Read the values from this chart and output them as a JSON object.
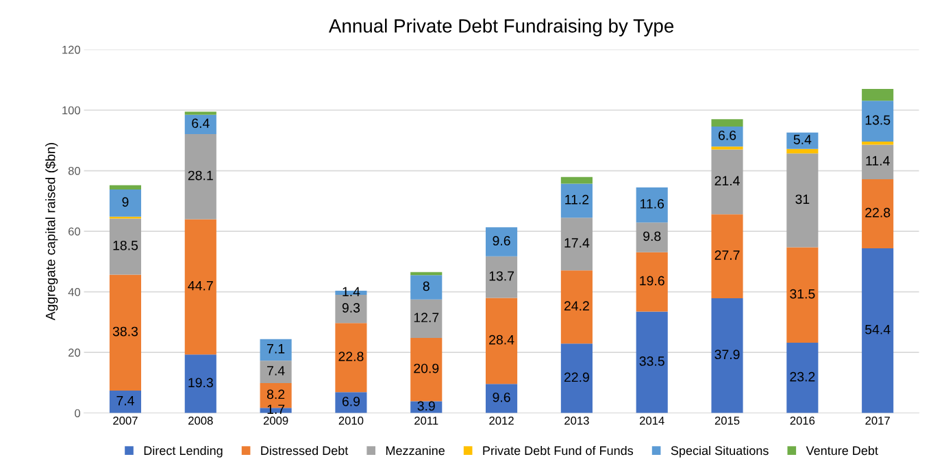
{
  "chart_data": {
    "type": "bar",
    "title": "Annual Private Debt Fundraising by Type",
    "ylabel": "Aggregate capital raised ($bn)",
    "categories": [
      "2007",
      "2008",
      "2009",
      "2010",
      "2011",
      "2012",
      "2013",
      "2014",
      "2015",
      "2016",
      "2017"
    ],
    "stacked": true,
    "ylim": [
      0,
      120
    ],
    "yticks": [
      0,
      20,
      40,
      60,
      80,
      100,
      120
    ],
    "grid": "y",
    "legend": "bottom",
    "series": [
      {
        "name": "Direct Lending",
        "color": "#4472c4",
        "values": [
          7.4,
          19.3,
          1.7,
          6.9,
          3.9,
          9.6,
          22.9,
          33.5,
          37.9,
          23.2,
          54.4
        ],
        "value_labels": [
          "7.4",
          "19.3",
          "1.7",
          "6.9",
          "3.9",
          "9.6",
          "22.9",
          "33.5",
          "37.9",
          "23.2",
          "54.4"
        ]
      },
      {
        "name": "Distressed Debt",
        "color": "#ed7d31",
        "values": [
          38.3,
          44.7,
          8.2,
          22.8,
          20.9,
          28.4,
          24.2,
          19.6,
          27.7,
          31.5,
          22.8
        ],
        "value_labels": [
          "38.3",
          "44.7",
          "8.2",
          "22.8",
          "20.9",
          "28.4",
          "24.2",
          "19.6",
          "27.7",
          "31.5",
          "22.8"
        ]
      },
      {
        "name": "Mezzanine",
        "color": "#a5a5a5",
        "values": [
          18.5,
          28.1,
          7.4,
          9.3,
          12.7,
          13.7,
          17.4,
          9.8,
          21.4,
          31,
          11.4
        ],
        "value_labels": [
          "18.5",
          "28.1",
          "7.4",
          "9.3",
          "12.7",
          "13.7",
          "17.4",
          "9.8",
          "21.4",
          "31",
          "11.4"
        ]
      },
      {
        "name": "Private Debt Fund of Funds",
        "color": "#ffc000",
        "values": [
          0.6,
          0,
          0,
          0,
          0,
          0,
          0,
          0,
          1,
          1.5,
          1
        ],
        "value_labels": [
          null,
          null,
          null,
          null,
          null,
          null,
          null,
          null,
          null,
          null,
          null
        ]
      },
      {
        "name": "Special Situations",
        "color": "#5b9bd5",
        "values": [
          9,
          6.4,
          7.1,
          1.4,
          8,
          9.6,
          11.2,
          11.6,
          6.6,
          5.4,
          13.5
        ],
        "value_labels": [
          "9",
          "6.4",
          "7.1",
          "1.4",
          "8",
          "9.6",
          "11.2",
          "11.6",
          "6.6",
          "5.4",
          "13.5"
        ]
      },
      {
        "name": "Venture Debt",
        "color": "#70ad47",
        "values": [
          1.4,
          1,
          0,
          0,
          1,
          0,
          2.2,
          0,
          2.4,
          0,
          3.9
        ],
        "value_labels": [
          null,
          null,
          null,
          null,
          null,
          null,
          null,
          null,
          null,
          null,
          null
        ]
      }
    ]
  }
}
